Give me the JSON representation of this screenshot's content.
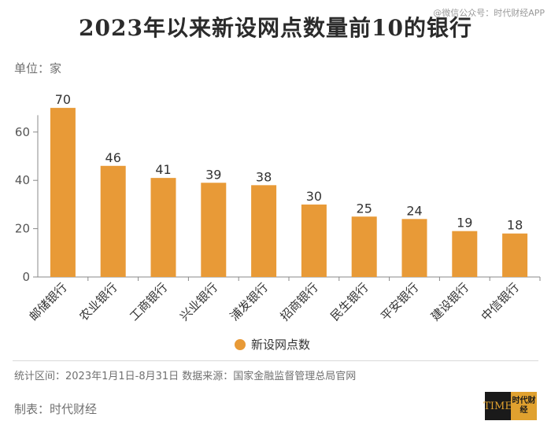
{
  "header": {
    "title": "2023年以来新设网点数量前10的银行",
    "watermark": "@微信公众号：时代财经APP",
    "unit_label": "单位：家"
  },
  "footer": {
    "source": "统计区间：2023年1月1日-8月31日  数据来源：国家金融监督管理总局官网",
    "maker": "制表：时代财经",
    "logo_left": "TIME",
    "logo_right": "时代财经"
  },
  "colors": {
    "bar": "#E89A37",
    "axis": "#888888",
    "text": "#333333",
    "tick": "#555555"
  },
  "chart_data": {
    "type": "bar",
    "title": "2023年以来新设网点数量前10的银行",
    "ylabel": "单位：家",
    "categories": [
      "邮储银行",
      "农业银行",
      "工商银行",
      "兴业银行",
      "浦发银行",
      "招商银行",
      "民生银行",
      "平安银行",
      "建设银行",
      "中信银行"
    ],
    "series": [
      {
        "name": "新设网点数",
        "values": [
          70,
          46,
          41,
          39,
          38,
          30,
          25,
          24,
          19,
          18
        ]
      }
    ],
    "yticks": [
      0,
      20,
      40,
      60
    ],
    "ylim": [
      0,
      80
    ],
    "grid": false,
    "legend": "bottom-center"
  }
}
